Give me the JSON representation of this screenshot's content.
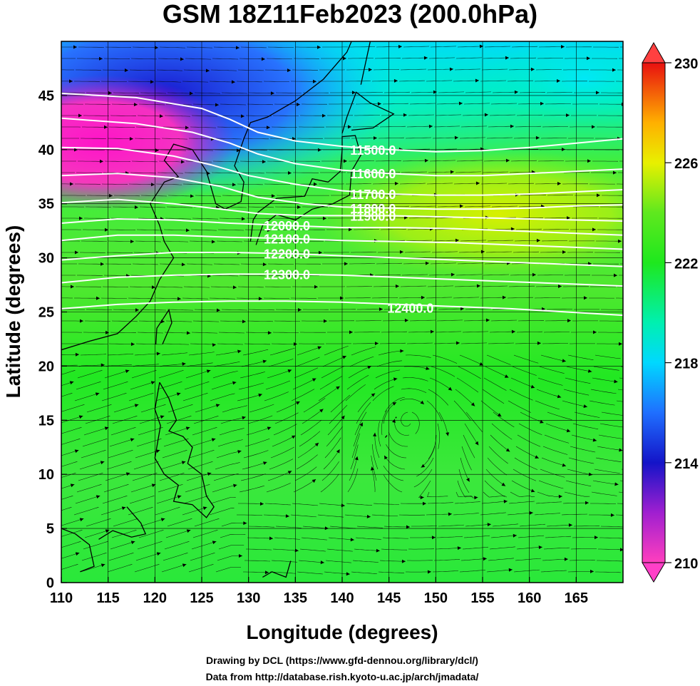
{
  "title": "GSM 18Z11Feb2023 (200.0hPa)",
  "credits": {
    "line1": "Drawing by DCL (https://www.gfd-dennou.org/library/dcl/)",
    "line2": "Data from http://database.rish.kyoto-u.ac.jp/arch/jmadata/"
  },
  "map_data": {
    "type": "map",
    "xlabel": "Longitude (degrees)",
    "ylabel": "Latitude  (degrees)",
    "xlim": [
      110,
      170
    ],
    "ylim": [
      0,
      50
    ],
    "xticks": [
      110,
      115,
      120,
      125,
      130,
      135,
      140,
      145,
      150,
      155,
      160,
      165
    ],
    "yticks": [
      0,
      5,
      10,
      15,
      20,
      25,
      30,
      35,
      40,
      45
    ],
    "gridlines": true,
    "colorbar": {
      "range": [
        210,
        230
      ],
      "tick_values": [
        210,
        214,
        218,
        222,
        226,
        230
      ],
      "tick_labels": [
        "210",
        "214",
        "218",
        "222",
        "226",
        "230"
      ],
      "colors": [
        "#ff3fbe",
        "#a01fd0",
        "#1414c8",
        "#1f6fff",
        "#00d8ff",
        "#00f0b0",
        "#1ee81e",
        "#5fe81e",
        "#c8f000",
        "#ffd000",
        "#ff7000",
        "#e81010"
      ]
    },
    "contours": [
      {
        "level": 11500,
        "label": "11500.0",
        "label_at": [
          143.3,
          40.0
        ],
        "points": [
          [
            110,
            45.2
          ],
          [
            118,
            44.8
          ],
          [
            125,
            43.8
          ],
          [
            128,
            42.8
          ],
          [
            131,
            41.6
          ],
          [
            135,
            40.8
          ],
          [
            140,
            40.3
          ],
          [
            145,
            40.0
          ],
          [
            150,
            39.8
          ],
          [
            155,
            39.9
          ],
          [
            160,
            40.2
          ],
          [
            165,
            40.6
          ],
          [
            170,
            41.0
          ]
        ]
      },
      {
        "level": 11600,
        "label": "11600.0",
        "label_at": [
          143.3,
          37.8
        ],
        "points": [
          [
            110,
            42.9
          ],
          [
            118,
            42.4
          ],
          [
            124,
            41.6
          ],
          [
            128,
            40.6
          ],
          [
            131,
            39.6
          ],
          [
            135,
            38.7
          ],
          [
            140,
            38.1
          ],
          [
            145,
            37.8
          ],
          [
            150,
            37.6
          ],
          [
            155,
            37.6
          ],
          [
            160,
            37.8
          ],
          [
            165,
            38.0
          ],
          [
            170,
            38.2
          ]
        ]
      },
      {
        "level": 11700,
        "label": "11700.0",
        "label_at": [
          143.3,
          35.9
        ],
        "points": [
          [
            110,
            40.2
          ],
          [
            116,
            40.1
          ],
          [
            122,
            39.4
          ],
          [
            126,
            38.6
          ],
          [
            130,
            37.6
          ],
          [
            135,
            36.8
          ],
          [
            140,
            36.2
          ],
          [
            145,
            35.9
          ],
          [
            150,
            35.8
          ],
          [
            155,
            35.8
          ],
          [
            160,
            35.9
          ],
          [
            165,
            36.1
          ],
          [
            170,
            36.3
          ]
        ]
      },
      {
        "level": 11800,
        "label": "11800.0",
        "label_at": [
          143.3,
          34.6
        ],
        "points": [
          [
            110,
            37.6
          ],
          [
            116,
            37.8
          ],
          [
            122,
            37.4
          ],
          [
            127,
            36.6
          ],
          [
            131,
            35.6
          ],
          [
            136,
            35.0
          ],
          [
            140,
            34.7
          ],
          [
            145,
            34.6
          ],
          [
            150,
            34.5
          ],
          [
            155,
            34.5
          ],
          [
            160,
            34.6
          ],
          [
            165,
            34.8
          ],
          [
            170,
            34.9
          ]
        ]
      },
      {
        "level": 11900,
        "label": "11900.0",
        "label_at": [
          143.3,
          33.9
        ],
        "points": [
          [
            110,
            35.1
          ],
          [
            116,
            35.4
          ],
          [
            122,
            35.0
          ],
          [
            127,
            34.5
          ],
          [
            131,
            34.1
          ],
          [
            136,
            33.9
          ],
          [
            140,
            33.9
          ],
          [
            145,
            33.9
          ],
          [
            150,
            33.8
          ],
          [
            155,
            33.7
          ],
          [
            160,
            33.6
          ],
          [
            165,
            33.5
          ],
          [
            170,
            33.4
          ]
        ]
      },
      {
        "level": 12000,
        "label": "12000.0",
        "label_at": [
          134.1,
          33.0
        ],
        "points": [
          [
            110,
            33.2
          ],
          [
            116,
            33.6
          ],
          [
            122,
            33.5
          ],
          [
            128,
            33.2
          ],
          [
            134,
            33.0
          ],
          [
            140,
            32.8
          ],
          [
            146,
            32.8
          ],
          [
            152,
            32.7
          ],
          [
            158,
            32.5
          ],
          [
            164,
            32.3
          ],
          [
            170,
            32.1
          ]
        ]
      },
      {
        "level": 12100,
        "label": "12100.0",
        "label_at": [
          134.1,
          31.8
        ],
        "points": [
          [
            110,
            31.6
          ],
          [
            116,
            32.1
          ],
          [
            122,
            32.1
          ],
          [
            128,
            31.9
          ],
          [
            134,
            31.8
          ],
          [
            140,
            31.6
          ],
          [
            146,
            31.5
          ],
          [
            152,
            31.4
          ],
          [
            158,
            31.2
          ],
          [
            164,
            31.0
          ],
          [
            170,
            30.8
          ]
        ]
      },
      {
        "level": 12200,
        "label": "12200.0",
        "label_at": [
          134.1,
          30.4
        ],
        "points": [
          [
            110,
            29.8
          ],
          [
            116,
            30.2
          ],
          [
            122,
            30.5
          ],
          [
            128,
            30.5
          ],
          [
            134,
            30.4
          ],
          [
            140,
            30.2
          ],
          [
            146,
            30.0
          ],
          [
            152,
            29.8
          ],
          [
            158,
            29.6
          ],
          [
            164,
            29.4
          ],
          [
            170,
            29.2
          ]
        ]
      },
      {
        "level": 12300,
        "label": "12300.0",
        "label_at": [
          134.1,
          28.5
        ],
        "points": [
          [
            110,
            27.7
          ],
          [
            116,
            28.2
          ],
          [
            122,
            28.4
          ],
          [
            128,
            28.5
          ],
          [
            134,
            28.5
          ],
          [
            140,
            28.4
          ],
          [
            146,
            28.2
          ],
          [
            152,
            28.0
          ],
          [
            158,
            27.8
          ],
          [
            164,
            27.6
          ],
          [
            170,
            27.4
          ]
        ]
      },
      {
        "level": 12400,
        "label": "12400.0",
        "label_at": [
          147.3,
          25.4
        ],
        "points": [
          [
            110,
            25.3
          ],
          [
            116,
            25.7
          ],
          [
            122,
            25.9
          ],
          [
            128,
            26.0
          ],
          [
            134,
            26.0
          ],
          [
            140,
            25.9
          ],
          [
            146,
            25.7
          ],
          [
            152,
            25.5
          ],
          [
            158,
            25.3
          ],
          [
            164,
            25.0
          ],
          [
            170,
            24.7
          ]
        ]
      }
    ]
  }
}
